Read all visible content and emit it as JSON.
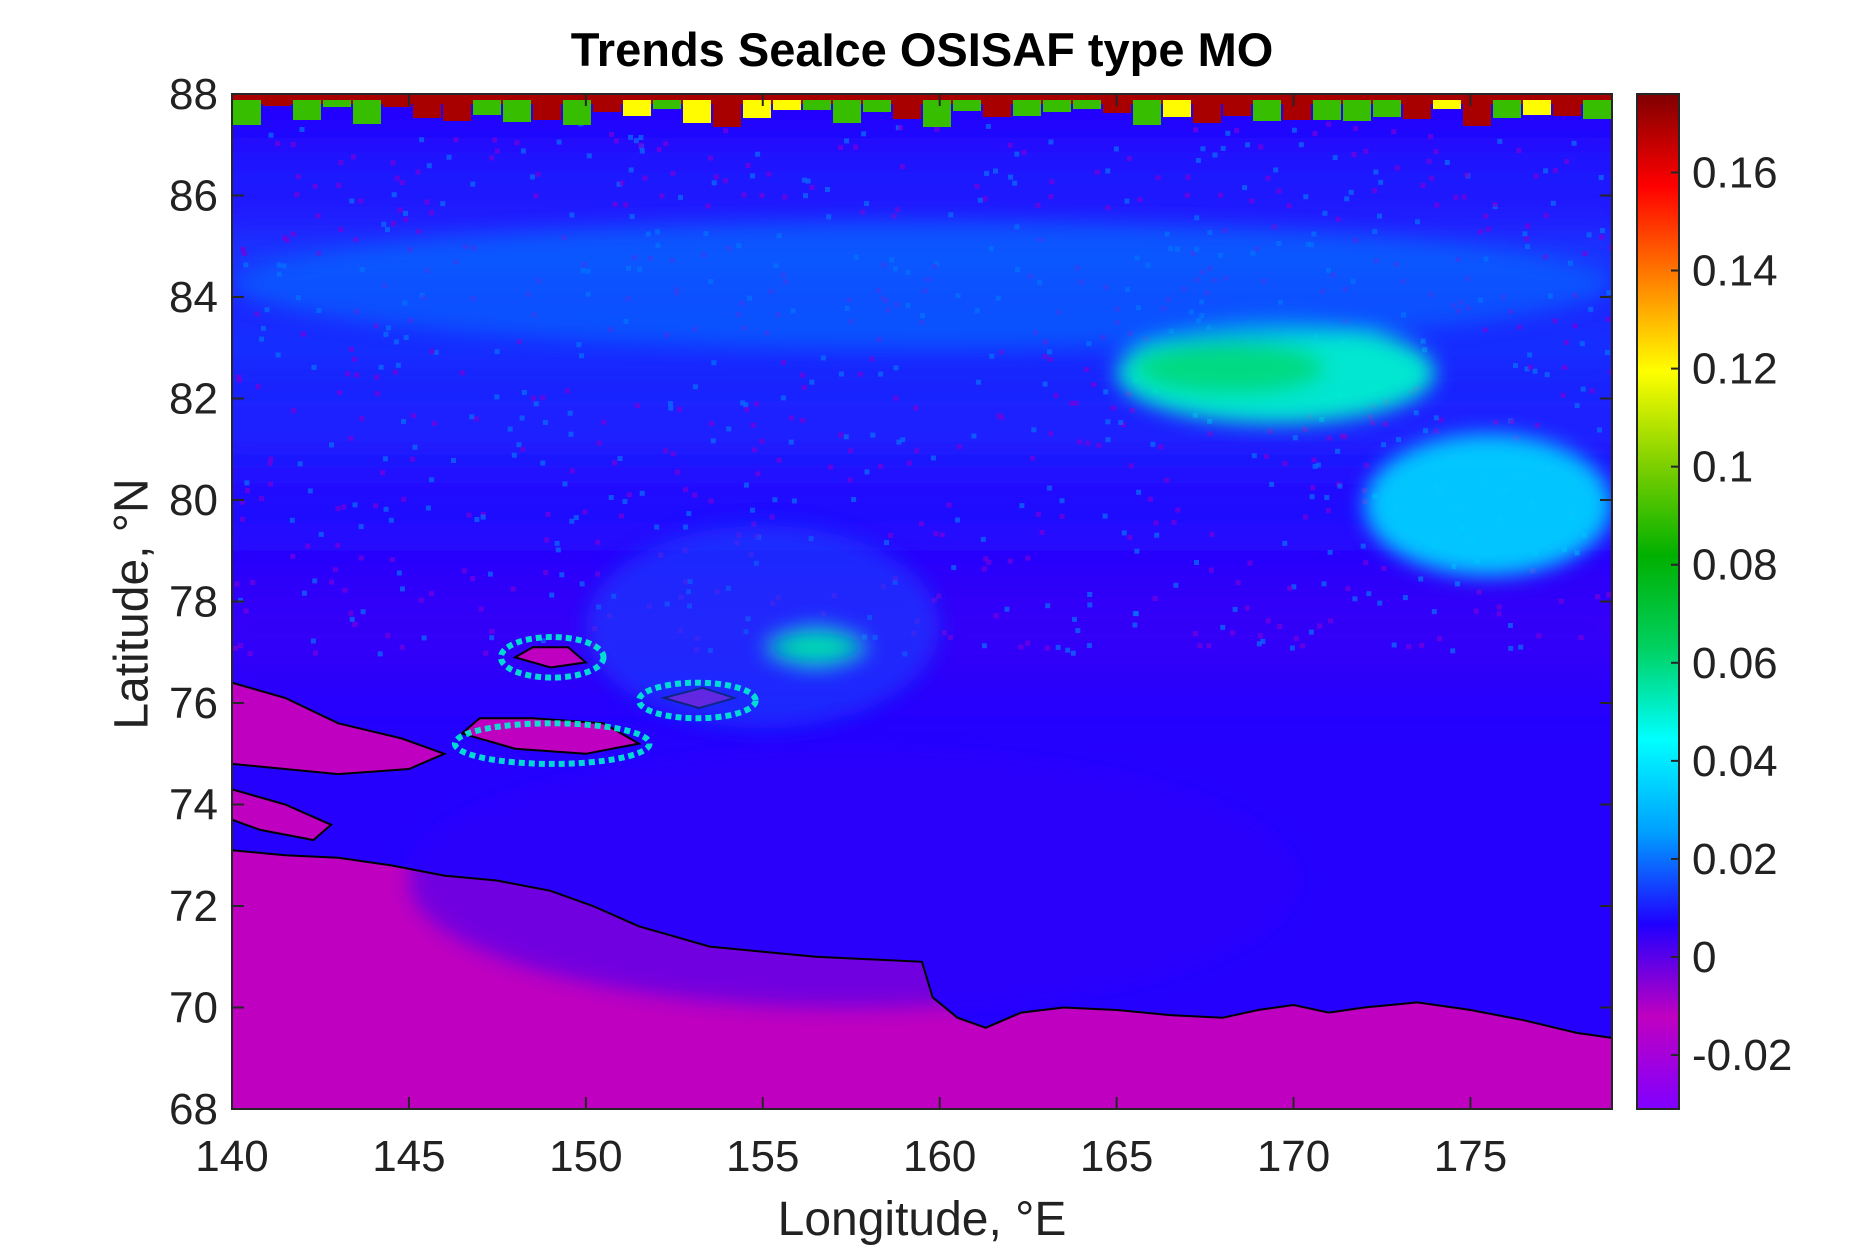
{
  "chart_data": {
    "type": "heatmap",
    "title": "Trends SeaIce OSISAF type MO",
    "xlabel": "Longitude, °E",
    "ylabel": "Latitude, °N",
    "xlim": [
      140,
      179
    ],
    "ylim": [
      68,
      88
    ],
    "xticks": [
      "140",
      "145",
      "150",
      "155",
      "160",
      "165",
      "170",
      "175"
    ],
    "yticks": [
      "68",
      "70",
      "72",
      "74",
      "76",
      "78",
      "80",
      "82",
      "84",
      "86",
      "88"
    ],
    "colorbar": {
      "range": [
        -0.031,
        0.176
      ],
      "ticks": [
        "-0.02",
        "0",
        "0.02",
        "0.04",
        "0.06",
        "0.08",
        "0.1",
        "0.12",
        "0.14",
        "0.16"
      ],
      "colormap": [
        "#8000ff",
        "#c000c0",
        "#2000ff",
        "#00a0ff",
        "#00ffff",
        "#00d060",
        "#00b000",
        "#80d000",
        "#ffff00",
        "#ff8000",
        "#ff0000",
        "#800000"
      ]
    },
    "land_color": "#c000c0",
    "coastline_color": "#000000",
    "field_features": [
      {
        "lon": [
          140,
          179
        ],
        "lat": [
          87.3,
          88
        ],
        "value": 0.1
      },
      {
        "lon": [
          165,
          174
        ],
        "lat": [
          81.5,
          83.5
        ],
        "value": 0.05
      },
      {
        "lon": [
          172,
          179
        ],
        "lat": [
          78.5,
          81.3
        ],
        "value": 0.035
      },
      {
        "lon": [
          155.5,
          157.5
        ],
        "lat": [
          76.7,
          77.5
        ],
        "value": 0.05
      },
      {
        "lon": [
          140,
          179
        ],
        "lat": [
          83,
          85.5
        ],
        "value": 0.02
      },
      {
        "lon": [
          150,
          160
        ],
        "lat": [
          75.5,
          79.5
        ],
        "value": 0.015
      },
      {
        "lon": [
          145,
          170
        ],
        "lat": [
          70,
          75
        ],
        "value": 0.005
      }
    ]
  }
}
